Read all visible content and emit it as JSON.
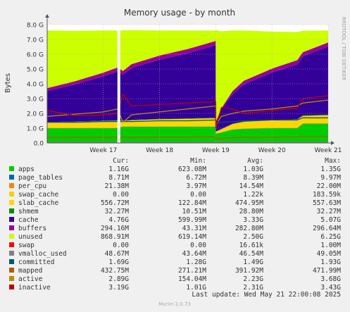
{
  "chart_data": {
    "type": "area",
    "title": "Memory usage - by month",
    "ylabel": "Bytes",
    "watermark": "RRDTOOL / TOBI OETIKER",
    "x_ticks": [
      "Week 17",
      "Week 18",
      "Week 19",
      "Week 20",
      "Week 21"
    ],
    "y_ticks": [
      "0.0",
      "1.0 G",
      "2.0 G",
      "3.0 G",
      "4.0 G",
      "5.0 G",
      "6.0 G",
      "7.0 G",
      "8.0 G"
    ],
    "ylim": [
      0,
      8.0
    ],
    "y_unit": "GB",
    "x_range_weeks": [
      16.0,
      21.0
    ],
    "gap": {
      "from": 17.25,
      "to": 17.3
    },
    "stack_order": [
      "apps",
      "page_tables",
      "per_cpu",
      "swap_cache",
      "slab_cache",
      "shmem",
      "cache",
      "buffers",
      "unused",
      "swap"
    ],
    "line_series": [
      "vmalloc_used",
      "committed",
      "mapped",
      "active",
      "inactive"
    ],
    "series_samples": {
      "x": [
        16.0,
        16.5,
        17.0,
        17.25,
        17.35,
        17.5,
        18.0,
        18.5,
        19.0,
        19.0,
        19.1,
        19.3,
        19.5,
        20.0,
        20.45,
        20.55,
        21.0
      ],
      "apps": [
        1.0,
        1.0,
        1.0,
        1.0,
        1.1,
        1.1,
        1.1,
        1.1,
        1.1,
        0.62,
        0.7,
        0.9,
        0.95,
        1.0,
        1.0,
        1.3,
        1.3
      ],
      "page_tables": [
        0.008,
        0.008,
        0.008,
        0.008,
        0.008,
        0.008,
        0.009,
        0.009,
        0.009,
        0.008,
        0.008,
        0.008,
        0.008,
        0.008,
        0.008,
        0.009,
        0.009
      ],
      "per_cpu": [
        0.021,
        0.021,
        0.021,
        0.021,
        0.021,
        0.021,
        0.021,
        0.021,
        0.021,
        0.021,
        0.021,
        0.021,
        0.021,
        0.021,
        0.021,
        0.021,
        0.021
      ],
      "swap_cache": [
        0,
        0,
        0,
        0,
        0,
        0,
        0,
        0,
        0,
        0,
        0,
        0,
        0,
        0,
        0,
        0,
        0
      ],
      "slab_cache": [
        0.35,
        0.4,
        0.45,
        0.47,
        0.35,
        0.4,
        0.47,
        0.5,
        0.55,
        0.12,
        0.2,
        0.35,
        0.45,
        0.5,
        0.55,
        0.5,
        0.55
      ],
      "shmem": [
        0.03,
        0.03,
        0.03,
        0.03,
        0.03,
        0.03,
        0.03,
        0.03,
        0.03,
        0.01,
        0.02,
        0.03,
        0.03,
        0.03,
        0.03,
        0.03,
        0.03
      ],
      "cache": [
        2.1,
        2.5,
        3.0,
        3.3,
        3.1,
        3.5,
        4.0,
        4.4,
        4.9,
        0.6,
        1.3,
        2.0,
        2.5,
        3.2,
        3.7,
        4.0,
        4.6
      ],
      "buffers": [
        0.2,
        0.22,
        0.25,
        0.27,
        0.26,
        0.27,
        0.28,
        0.29,
        0.29,
        0.05,
        0.1,
        0.2,
        0.25,
        0.27,
        0.29,
        0.28,
        0.29
      ],
      "unused": [
        3.9,
        3.4,
        2.85,
        2.5,
        2.75,
        2.3,
        1.7,
        1.25,
        0.7,
        6.2,
        5.2,
        4.1,
        3.4,
        2.5,
        1.9,
        1.45,
        0.8
      ],
      "swap": [
        0,
        0,
        0,
        0,
        0,
        0,
        0,
        0,
        0,
        0,
        0,
        0,
        0,
        0,
        0,
        0,
        0
      ],
      "vmalloc_used": [
        0.048,
        0.048,
        0.048,
        0.048,
        0.048,
        0.048,
        0.048,
        0.048,
        0.048,
        0.044,
        0.046,
        0.046,
        0.047,
        0.048,
        0.048,
        0.049,
        0.049
      ],
      "committed": [
        1.4,
        1.4,
        1.45,
        1.45,
        1.45,
        1.45,
        1.5,
        1.5,
        1.55,
        1.3,
        1.4,
        1.45,
        1.5,
        1.55,
        1.55,
        1.7,
        1.7
      ],
      "mapped": [
        0.38,
        0.38,
        0.39,
        0.39,
        0.39,
        0.39,
        0.4,
        0.4,
        0.41,
        0.27,
        0.3,
        0.35,
        0.38,
        0.4,
        0.41,
        0.43,
        0.43
      ],
      "active": [
        1.8,
        1.95,
        2.1,
        2.3,
        1.4,
        1.9,
        2.1,
        2.3,
        2.5,
        1.2,
        1.8,
        2.0,
        2.15,
        2.3,
        2.5,
        2.7,
        2.9
      ],
      "inactive": [
        2.2,
        1.85,
        1.9,
        2.0,
        3.3,
        2.5,
        2.6,
        2.7,
        2.8,
        1.0,
        2.4,
        2.3,
        2.0,
        2.2,
        2.35,
        3.0,
        3.2
      ]
    },
    "legend_header": {
      "cur": "Cur:",
      "min": "Min:",
      "avg": "Avg:",
      "max": "Max:"
    },
    "legend": [
      {
        "key": "apps",
        "label": "apps",
        "color": "#00cc00",
        "cur": "1.16G",
        "min": "623.08M",
        "avg": "1.03G",
        "max": "1.35G"
      },
      {
        "key": "page_tables",
        "label": "page_tables",
        "color": "#0066b3",
        "cur": "8.71M",
        "min": "6.72M",
        "avg": "8.39M",
        "max": "9.97M"
      },
      {
        "key": "per_cpu",
        "label": "per_cpu",
        "color": "#ff8000",
        "cur": "21.38M",
        "min": "3.97M",
        "avg": "14.54M",
        "max": "22.00M"
      },
      {
        "key": "swap_cache",
        "label": "swap_cache",
        "color": "#ffcc00",
        "cur": "0.00",
        "min": "0.00",
        "avg": "1.22k",
        "max": "183.59k"
      },
      {
        "key": "slab_cache",
        "label": "slab_cache",
        "color": "#ffd700",
        "cur": "556.72M",
        "min": "122.84M",
        "avg": "474.95M",
        "max": "557.63M"
      },
      {
        "key": "shmem",
        "label": "shmem",
        "color": "#008f00",
        "cur": "32.27M",
        "min": "10.51M",
        "avg": "28.80M",
        "max": "32.27M"
      },
      {
        "key": "cache",
        "label": "cache",
        "color": "#330099",
        "cur": "4.76G",
        "min": "599.99M",
        "avg": "3.33G",
        "max": "5.07G"
      },
      {
        "key": "buffers",
        "label": "buffers",
        "color": "#990099",
        "cur": "294.16M",
        "min": "43.31M",
        "avg": "282.80M",
        "max": "296.64M"
      },
      {
        "key": "unused",
        "label": "unused",
        "color": "#ccff00",
        "cur": "868.91M",
        "min": "619.14M",
        "avg": "2.50G",
        "max": "6.25G"
      },
      {
        "key": "swap",
        "label": "swap",
        "color": "#ff0000",
        "cur": "0.00",
        "min": "0.00",
        "avg": "16.61k",
        "max": "1.00M"
      },
      {
        "key": "vmalloc_used",
        "label": "vmalloc_used",
        "color": "#808080",
        "cur": "48.67M",
        "min": "43.64M",
        "avg": "46.54M",
        "max": "49.05M"
      },
      {
        "key": "committed",
        "label": "committed",
        "color": "#005773",
        "cur": "1.69G",
        "min": "1.28G",
        "avg": "1.49G",
        "max": "1.93G"
      },
      {
        "key": "mapped",
        "label": "mapped",
        "color": "#b35a00",
        "cur": "432.75M",
        "min": "271.21M",
        "avg": "391.92M",
        "max": "471.99M"
      },
      {
        "key": "active",
        "label": "active",
        "color": "#b38f00",
        "cur": "2.89G",
        "min": "154.04M",
        "avg": "2.23G",
        "max": "3.68G"
      },
      {
        "key": "inactive",
        "label": "inactive",
        "color": "#c00000",
        "cur": "3.19G",
        "min": "1.01G",
        "avg": "2.31G",
        "max": "3.43G"
      }
    ],
    "last_update": "Last update: Wed May 21 22:00:08 2025",
    "footer": "Munin 2.0.73"
  }
}
